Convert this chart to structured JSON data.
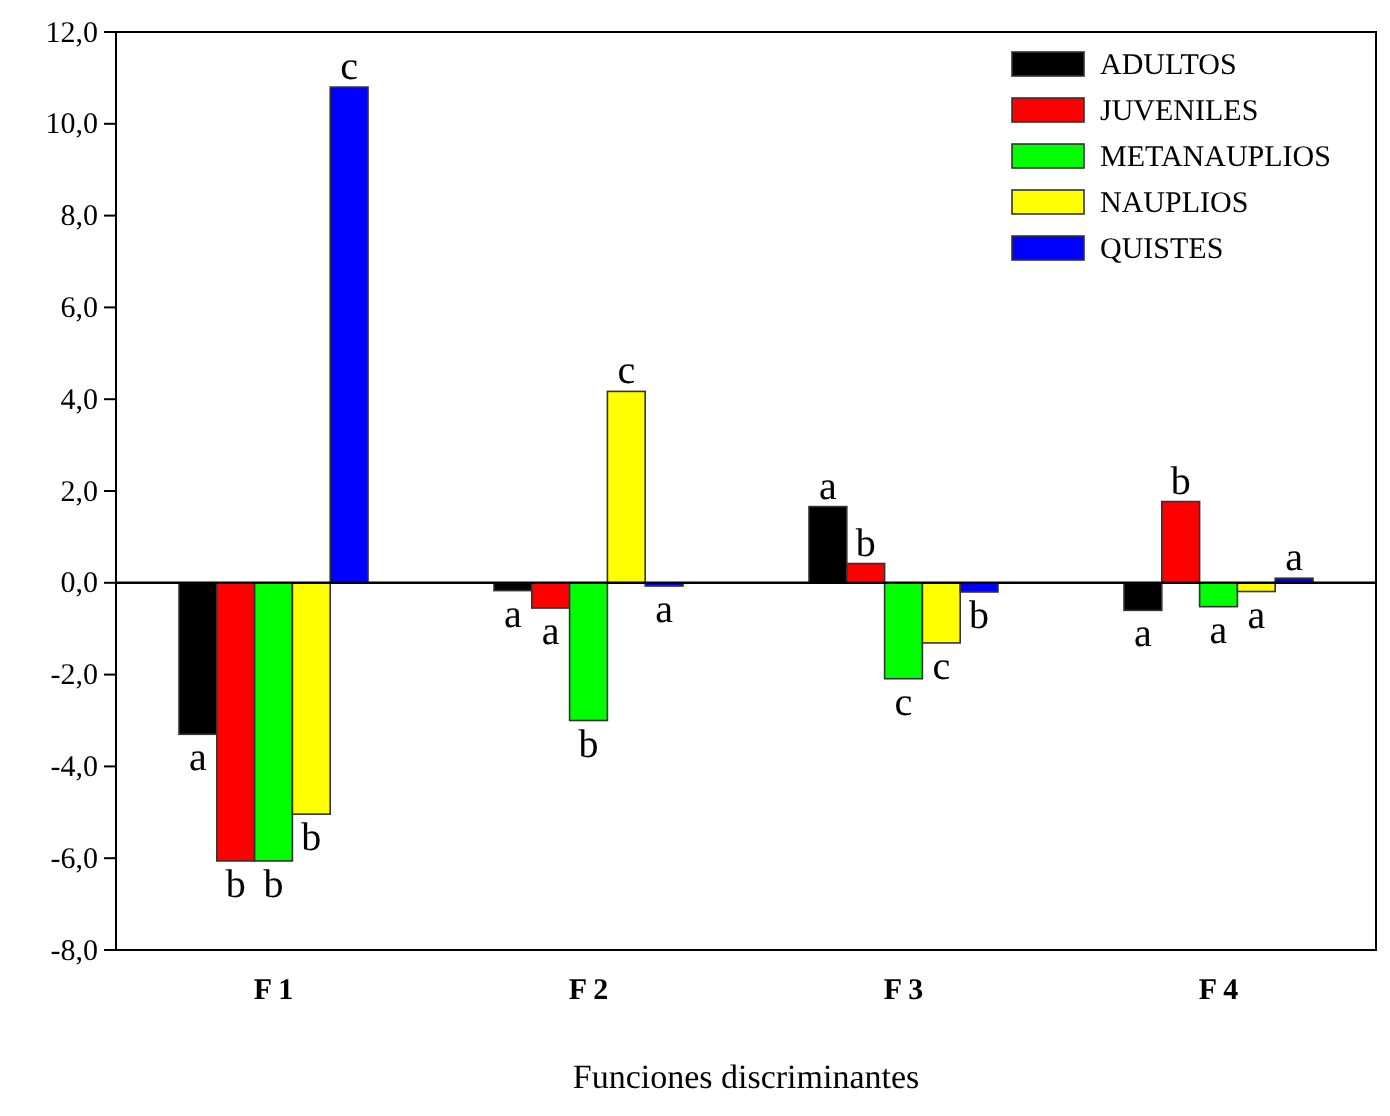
{
  "chart_data": {
    "type": "bar",
    "xlabel": "Funciones discriminantes",
    "categories": [
      "F 1",
      "F 2",
      "F 3",
      "F 4"
    ],
    "series": [
      {
        "name": "ADULTOS",
        "color": "#000000",
        "values": [
          -3.3,
          -0.17,
          1.66,
          -0.6
        ]
      },
      {
        "name": "JUVENILES",
        "color": "#ff0000",
        "values": [
          -6.06,
          -0.55,
          0.42,
          1.77
        ]
      },
      {
        "name": "METANAUPLIOS",
        "color": "#00ff00",
        "values": [
          -6.06,
          -3.0,
          -2.09,
          -0.52
        ]
      },
      {
        "name": "NAUPLIOS",
        "color": "#ffff00",
        "values": [
          -5.04,
          4.17,
          -1.31,
          -0.19
        ]
      },
      {
        "name": "QUISTES",
        "color": "#0000ff",
        "values": [
          10.8,
          -0.07,
          -0.2,
          0.1
        ]
      }
    ],
    "ylim": [
      -8,
      12
    ],
    "yticks": [
      {
        "value": -8,
        "label": "-8,0"
      },
      {
        "value": -6,
        "label": "-6,0"
      },
      {
        "value": -4,
        "label": "-4,0"
      },
      {
        "value": -2,
        "label": "-2,0"
      },
      {
        "value": 0,
        "label": "0,0"
      },
      {
        "value": 2,
        "label": "2,0"
      },
      {
        "value": 4,
        "label": "4,0"
      },
      {
        "value": 6,
        "label": "6,0"
      },
      {
        "value": 8,
        "label": "8,0"
      },
      {
        "value": 10,
        "label": "10,0"
      },
      {
        "value": 12,
        "label": "12,0"
      }
    ],
    "legend": "top right",
    "annotations": [
      "a",
      "b",
      "b",
      "b",
      "c",
      "a",
      "a",
      "b",
      "c",
      "a",
      "a",
      "b",
      "c",
      "c",
      "b",
      "a",
      "b",
      "a",
      "a",
      "a"
    ]
  }
}
